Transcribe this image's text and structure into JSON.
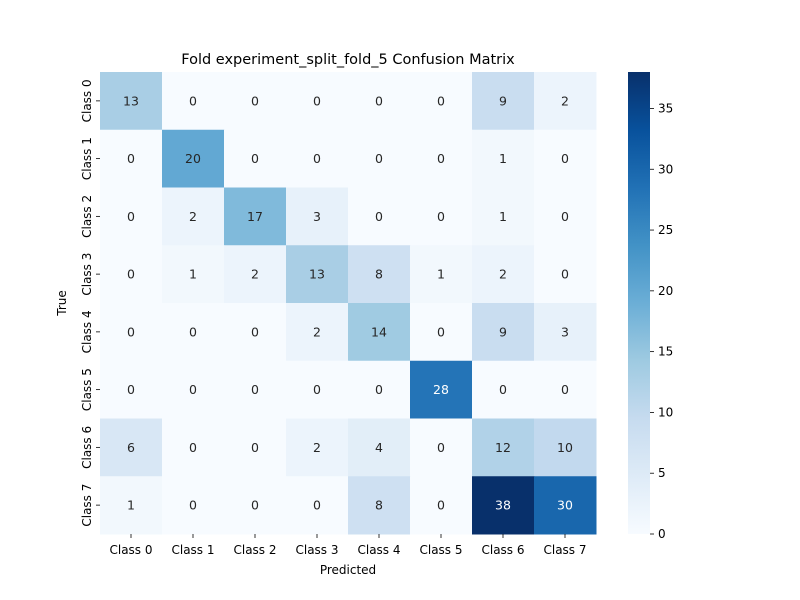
{
  "chart_data": {
    "type": "heatmap",
    "title": "Fold experiment_split_fold_5 Confusion Matrix",
    "xlabel": "Predicted",
    "ylabel": "True",
    "x_categories": [
      "Class 0",
      "Class 1",
      "Class 2",
      "Class 3",
      "Class 4",
      "Class 5",
      "Class 6",
      "Class 7"
    ],
    "y_categories": [
      "Class 0",
      "Class 1",
      "Class 2",
      "Class 3",
      "Class 4",
      "Class 5",
      "Class 6",
      "Class 7"
    ],
    "values": [
      [
        13,
        0,
        0,
        0,
        0,
        0,
        9,
        2
      ],
      [
        0,
        20,
        0,
        0,
        0,
        0,
        1,
        0
      ],
      [
        0,
        2,
        17,
        3,
        0,
        0,
        1,
        0
      ],
      [
        0,
        1,
        2,
        13,
        8,
        1,
        2,
        0
      ],
      [
        0,
        0,
        0,
        2,
        14,
        0,
        9,
        3
      ],
      [
        0,
        0,
        0,
        0,
        0,
        28,
        0,
        0
      ],
      [
        6,
        0,
        0,
        2,
        4,
        0,
        12,
        10
      ],
      [
        1,
        0,
        0,
        0,
        8,
        0,
        38,
        30
      ]
    ],
    "colormap": "Blues",
    "value_range": [
      0,
      38
    ],
    "colorbar_ticks": [
      0,
      5,
      10,
      15,
      20,
      25,
      30,
      35
    ],
    "colorbar_tick_labels": [
      "0",
      "5",
      "10",
      "15",
      "20",
      "25",
      "30",
      "35"
    ],
    "annotations": true,
    "grid": false
  }
}
